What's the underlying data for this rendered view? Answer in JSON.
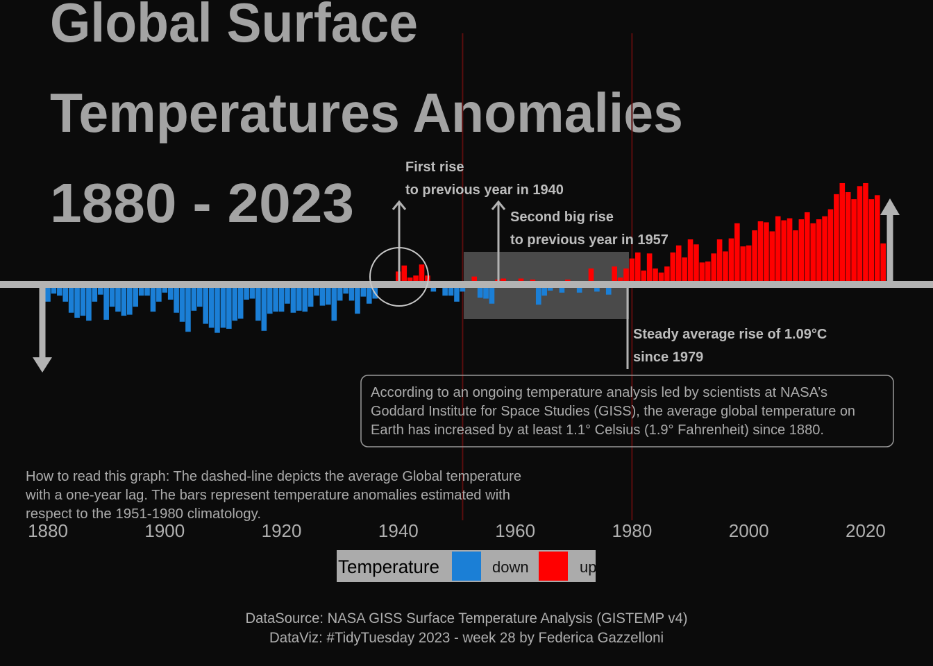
{
  "chart_data": {
    "type": "bar",
    "title_lines": [
      "Global Surface",
      "Temperatures Anomalies",
      "1880 - 2023"
    ],
    "x": [
      1880,
      1881,
      1882,
      1883,
      1884,
      1885,
      1886,
      1887,
      1888,
      1889,
      1890,
      1891,
      1892,
      1893,
      1894,
      1895,
      1896,
      1897,
      1898,
      1899,
      1900,
      1901,
      1902,
      1903,
      1904,
      1905,
      1906,
      1907,
      1908,
      1909,
      1910,
      1911,
      1912,
      1913,
      1914,
      1915,
      1916,
      1917,
      1918,
      1919,
      1920,
      1921,
      1922,
      1923,
      1924,
      1925,
      1926,
      1927,
      1928,
      1929,
      1930,
      1931,
      1932,
      1933,
      1934,
      1935,
      1936,
      1937,
      1938,
      1939,
      1940,
      1941,
      1942,
      1943,
      1944,
      1945,
      1946,
      1947,
      1948,
      1949,
      1950,
      1951,
      1952,
      1953,
      1954,
      1955,
      1956,
      1957,
      1958,
      1959,
      1960,
      1961,
      1962,
      1963,
      1964,
      1965,
      1966,
      1967,
      1968,
      1969,
      1970,
      1971,
      1972,
      1973,
      1974,
      1975,
      1976,
      1977,
      1978,
      1979,
      1980,
      1981,
      1982,
      1983,
      1984,
      1985,
      1986,
      1987,
      1988,
      1989,
      1990,
      1991,
      1992,
      1993,
      1994,
      1995,
      1996,
      1997,
      1998,
      1999,
      2000,
      2001,
      2002,
      2003,
      2004,
      2005,
      2006,
      2007,
      2008,
      2009,
      2010,
      2011,
      2012,
      2013,
      2014,
      2015,
      2016,
      2017,
      2018,
      2019,
      2020,
      2021,
      2022,
      2023
    ],
    "values": [
      -0.17,
      -0.09,
      -0.11,
      -0.17,
      -0.28,
      -0.33,
      -0.31,
      -0.36,
      -0.17,
      -0.1,
      -0.35,
      -0.22,
      -0.27,
      -0.31,
      -0.3,
      -0.22,
      -0.11,
      -0.11,
      -0.27,
      -0.17,
      -0.08,
      -0.15,
      -0.28,
      -0.37,
      -0.47,
      -0.26,
      -0.22,
      -0.39,
      -0.43,
      -0.48,
      -0.43,
      -0.44,
      -0.36,
      -0.34,
      -0.15,
      -0.14,
      -0.36,
      -0.46,
      -0.29,
      -0.27,
      -0.27,
      -0.19,
      -0.28,
      -0.26,
      -0.27,
      -0.22,
      -0.11,
      -0.21,
      -0.2,
      -0.36,
      -0.16,
      -0.09,
      -0.16,
      -0.29,
      -0.12,
      -0.19,
      -0.14,
      -0.02,
      -0.01,
      -0.02,
      0.13,
      0.19,
      0.07,
      0.09,
      0.2,
      0.09,
      -0.07,
      -0.03,
      -0.11,
      -0.11,
      -0.17,
      -0.07,
      0.01,
      0.08,
      -0.13,
      -0.14,
      -0.19,
      0.05,
      0.06,
      0.03,
      -0.03,
      0.06,
      0.03,
      0.05,
      -0.2,
      -0.11,
      -0.06,
      -0.02,
      -0.08,
      0.05,
      0.03,
      -0.08,
      0.01,
      0.16,
      -0.07,
      -0.01,
      -0.1,
      0.18,
      0.07,
      0.16,
      0.26,
      0.32,
      0.14,
      0.31,
      0.16,
      0.12,
      0.18,
      0.32,
      0.39,
      0.27,
      0.45,
      0.4,
      0.22,
      0.23,
      0.31,
      0.45,
      0.33,
      0.46,
      0.61,
      0.38,
      0.39,
      0.54,
      0.63,
      0.62,
      0.53,
      0.68,
      0.64,
      0.66,
      0.54,
      0.65,
      0.72,
      0.61,
      0.65,
      0.68,
      0.75,
      0.9,
      1.01,
      0.92,
      0.85,
      0.98,
      1.01,
      0.85,
      0.89,
      0.41
    ],
    "colors": {
      "down": "#1b7fd6",
      "up": "#ff0000"
    },
    "xlim": [
      1872,
      2031
    ],
    "xticks": [
      1880,
      1900,
      1920,
      1940,
      1960,
      1980,
      2000,
      2020
    ],
    "ylim": [
      -1.0,
      1.5
    ],
    "reference_lines": [
      1951,
      1980
    ],
    "legend": {
      "title": "Temperature",
      "entries": [
        {
          "name": "down",
          "color": "#1b7fd6"
        },
        {
          "name": "up",
          "color": "#ff0000"
        }
      ]
    },
    "annotations": [
      {
        "lines": [
          "First rise",
          "to previous year in 1940"
        ]
      },
      {
        "lines": [
          "Second big rise",
          "to previous year in 1957"
        ]
      },
      {
        "lines": [
          "Steady average rise of 1.09°C",
          "since 1979"
        ]
      }
    ],
    "description": [
      "According to an ongoing temperature analysis led by scientists at NASA’s",
      "Goddard Institute for Space Studies (GISS), the average global temperature on",
      "Earth has increased by at least 1.1° Celsius (1.9° Fahrenheit) since 1880."
    ],
    "how_to_read": [
      "How to read this graph: The dashed-line depicts the average Global temperature",
      "with a one-year lag. The bars represent temperature anomalies estimated with",
      "respect to the 1951-1980 climatology."
    ],
    "caption": [
      "DataSource: NASA GISS Surface Temperature Analysis (GISTEMP v4)",
      "DataViz: #TidyTuesday 2023 - week 28 by Federica Gazzelloni"
    ]
  }
}
